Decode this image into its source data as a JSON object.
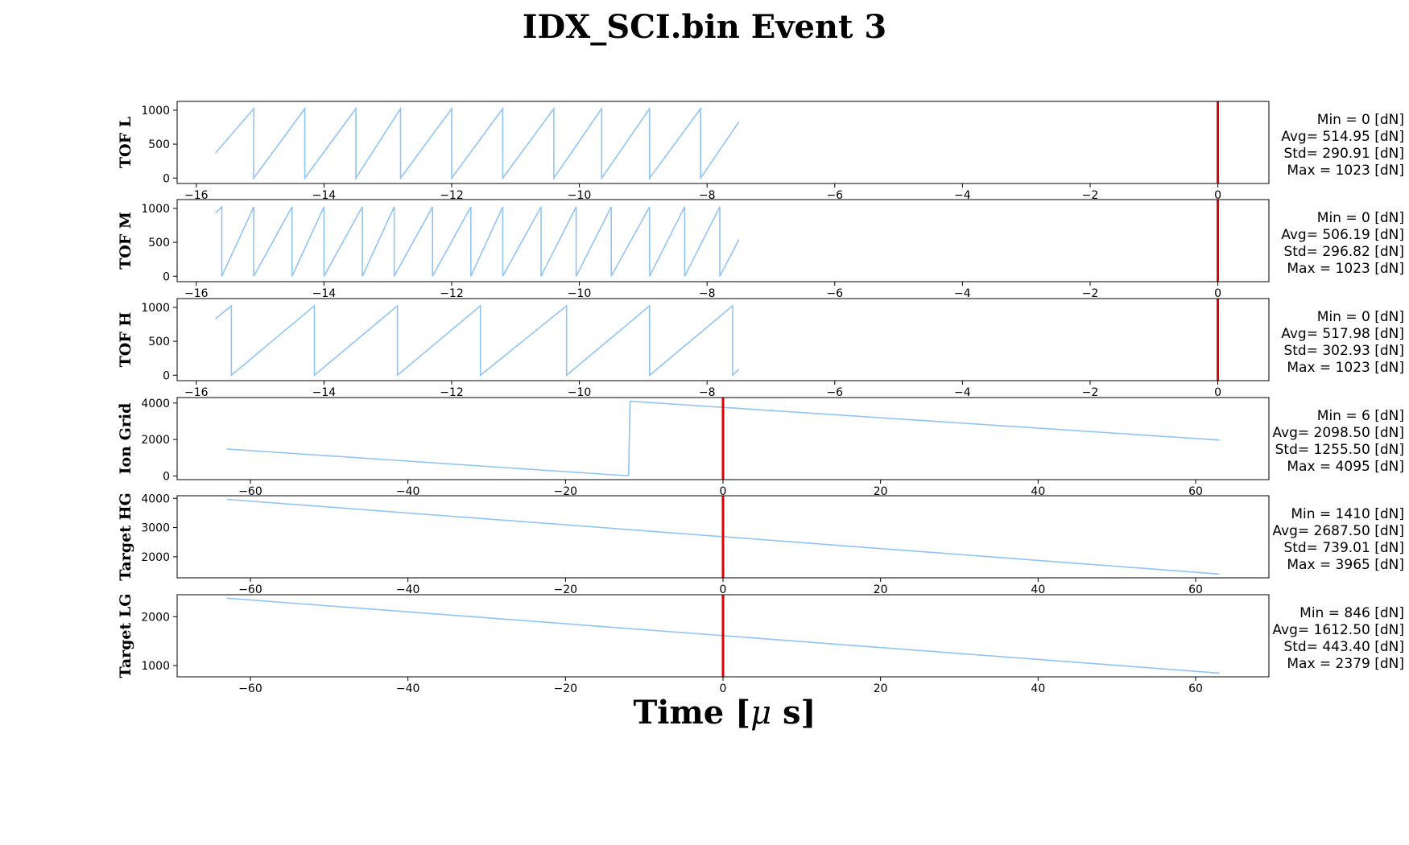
{
  "title": "IDX_SCI.bin Event 3",
  "xlabel_prefix": "Time [",
  "xlabel_mu": "μ",
  "xlabel_suffix": " s]",
  "colors": {
    "trace": "#90c4f5",
    "marker": "#e00000",
    "axis": "#000000"
  },
  "chart_data": [
    {
      "type": "line",
      "ylabel": "TOF L",
      "xlim": [
        -16.3,
        0.8
      ],
      "ylim": [
        -80,
        1130
      ],
      "xticks": [
        -16,
        -14,
        -12,
        -10,
        -8,
        -6,
        -4,
        -2,
        0
      ],
      "yticks": [
        0,
        500,
        1000
      ],
      "marker_x": 0,
      "series": [
        {
          "x": [
            -15.7,
            -15.1,
            -15.1,
            -14.3,
            -14.3,
            -13.5,
            -13.5,
            -12.8,
            -12.8,
            -12.0,
            -12.0,
            -11.2,
            -11.2,
            -10.4,
            -10.4,
            -9.65,
            -9.65,
            -8.9,
            -8.9,
            -8.1,
            -8.1,
            -7.5
          ],
          "y": [
            370,
            1023,
            0,
            1023,
            0,
            1023,
            0,
            1023,
            0,
            1023,
            0,
            1023,
            0,
            1023,
            0,
            1023,
            0,
            1023,
            0,
            1023,
            0,
            830
          ]
        }
      ],
      "stats": [
        "Min = 0 [dN]",
        "Avg= 514.95 [dN]",
        "Std= 290.91 [dN]",
        "Max = 1023 [dN]"
      ]
    },
    {
      "type": "line",
      "ylabel": "TOF M",
      "xlim": [
        -16.3,
        0.8
      ],
      "ylim": [
        -80,
        1130
      ],
      "xticks": [
        -16,
        -14,
        -12,
        -10,
        -8,
        -6,
        -4,
        -2,
        0
      ],
      "yticks": [
        0,
        500,
        1000
      ],
      "marker_x": 0,
      "series": [
        {
          "x": [
            -15.7,
            -15.6,
            -15.6,
            -15.1,
            -15.1,
            -14.5,
            -14.5,
            -14.0,
            -14.0,
            -13.4,
            -13.4,
            -12.9,
            -12.9,
            -12.3,
            -12.3,
            -11.7,
            -11.7,
            -11.2,
            -11.2,
            -10.6,
            -10.6,
            -10.05,
            -10.05,
            -9.5,
            -9.5,
            -8.9,
            -8.9,
            -8.35,
            -8.35,
            -7.8,
            -7.8,
            -7.5
          ],
          "y": [
            930,
            1023,
            0,
            1023,
            0,
            1023,
            0,
            1023,
            0,
            1023,
            0,
            1023,
            0,
            1023,
            0,
            1023,
            0,
            1023,
            0,
            1023,
            0,
            1023,
            0,
            1023,
            0,
            1023,
            0,
            1023,
            0,
            1023,
            0,
            540
          ]
        }
      ],
      "stats": [
        "Min = 0 [dN]",
        "Avg= 506.19 [dN]",
        "Std= 296.82 [dN]",
        "Max = 1023 [dN]"
      ]
    },
    {
      "type": "line",
      "ylabel": "TOF H",
      "xlim": [
        -16.3,
        0.8
      ],
      "ylim": [
        -80,
        1130
      ],
      "xticks": [
        -16,
        -14,
        -12,
        -10,
        -8,
        -6,
        -4,
        -2,
        0
      ],
      "yticks": [
        0,
        500,
        1000
      ],
      "marker_x": 0,
      "series": [
        {
          "x": [
            -15.7,
            -15.45,
            -15.45,
            -14.15,
            -14.15,
            -12.85,
            -12.85,
            -11.55,
            -11.55,
            -10.2,
            -10.2,
            -8.9,
            -8.9,
            -7.6,
            -7.6,
            -7.5
          ],
          "y": [
            830,
            1023,
            0,
            1023,
            0,
            1023,
            0,
            1023,
            0,
            1023,
            0,
            1023,
            0,
            1023,
            0,
            90
          ]
        }
      ],
      "stats": [
        "Min = 0 [dN]",
        "Avg= 517.98 [dN]",
        "Std= 302.93 [dN]",
        "Max = 1023 [dN]"
      ]
    },
    {
      "type": "line",
      "ylabel": "Ion Grid",
      "xlim": [
        -69.3,
        69.3
      ],
      "ylim": [
        -200,
        4300
      ],
      "xticks": [
        -60,
        -40,
        -20,
        0,
        20,
        40,
        60
      ],
      "yticks": [
        0,
        2000,
        4000
      ],
      "marker_x": 0,
      "series": [
        {
          "x": [
            -63,
            -12,
            -11.8,
            63
          ],
          "y": [
            1480,
            6,
            4095,
            1970
          ]
        }
      ],
      "stats": [
        "Min = 6 [dN]",
        "Avg= 2098.50 [dN]",
        "Std= 1255.50 [dN]",
        "Max = 4095 [dN]"
      ]
    },
    {
      "type": "line",
      "ylabel": "Target HG",
      "xlim": [
        -69.3,
        69.3
      ],
      "ylim": [
        1280,
        4090
      ],
      "xticks": [
        -60,
        -40,
        -20,
        0,
        20,
        40,
        60
      ],
      "yticks": [
        2000,
        3000,
        4000
      ],
      "marker_x": 0,
      "series": [
        {
          "x": [
            -63,
            63
          ],
          "y": [
            3965,
            1410
          ]
        }
      ],
      "stats": [
        "Min = 1410 [dN]",
        "Avg= 2687.50 [dN]",
        "Std= 739.01 [dN]",
        "Max = 3965 [dN]"
      ]
    },
    {
      "type": "line",
      "ylabel": "Target LG",
      "xlim": [
        -69.3,
        69.3
      ],
      "ylim": [
        770,
        2450
      ],
      "xticks": [
        -60,
        -40,
        -20,
        0,
        20,
        40,
        60
      ],
      "yticks": [
        1000,
        2000
      ],
      "marker_x": 0,
      "series": [
        {
          "x": [
            -63,
            63
          ],
          "y": [
            2379,
            846
          ]
        }
      ],
      "stats": [
        "Min = 846 [dN]",
        "Avg= 1612.50 [dN]",
        "Std= 443.40 [dN]",
        "Max = 2379 [dN]"
      ]
    }
  ]
}
